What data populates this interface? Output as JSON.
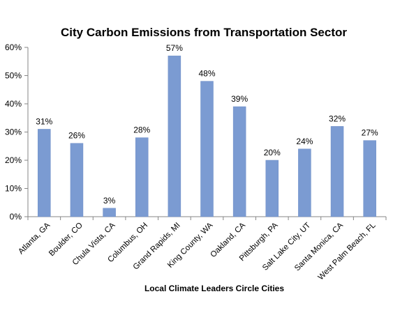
{
  "chart_data": {
    "type": "bar",
    "title": "City Carbon Emissions from Transportation Sector",
    "xlabel": "Local Climate Leaders Circle Cities",
    "ylabel": "",
    "categories": [
      "Atlanta, GA",
      "Boulder, CO",
      "Chula Vista, CA",
      "Columbus, OH",
      "Grand Rapids, MI",
      "King County, WA",
      "Oakland, CA",
      "Pittsburgh, PA",
      "Salt Lake City, UT",
      "Santa Monica, CA",
      "West Palm Beach, FL"
    ],
    "values": [
      31,
      26,
      3,
      28,
      57,
      48,
      39,
      20,
      24,
      32,
      27
    ],
    "data_labels": [
      "31%",
      "26%",
      "3%",
      "28%",
      "57%",
      "48%",
      "39%",
      "20%",
      "24%",
      "32%",
      "27%"
    ],
    "ylim": [
      0,
      60
    ],
    "y_ticks": [
      0,
      10,
      20,
      30,
      40,
      50,
      60
    ],
    "y_tick_labels": [
      "0%",
      "10%",
      "20%",
      "30%",
      "40%",
      "50%",
      "60%"
    ],
    "grid": false,
    "legend": "none",
    "colors": {
      "bar": "#7b9bd2",
      "bar_edge": "#6d8dc6",
      "axis": "#868686",
      "text": "#000000"
    }
  }
}
